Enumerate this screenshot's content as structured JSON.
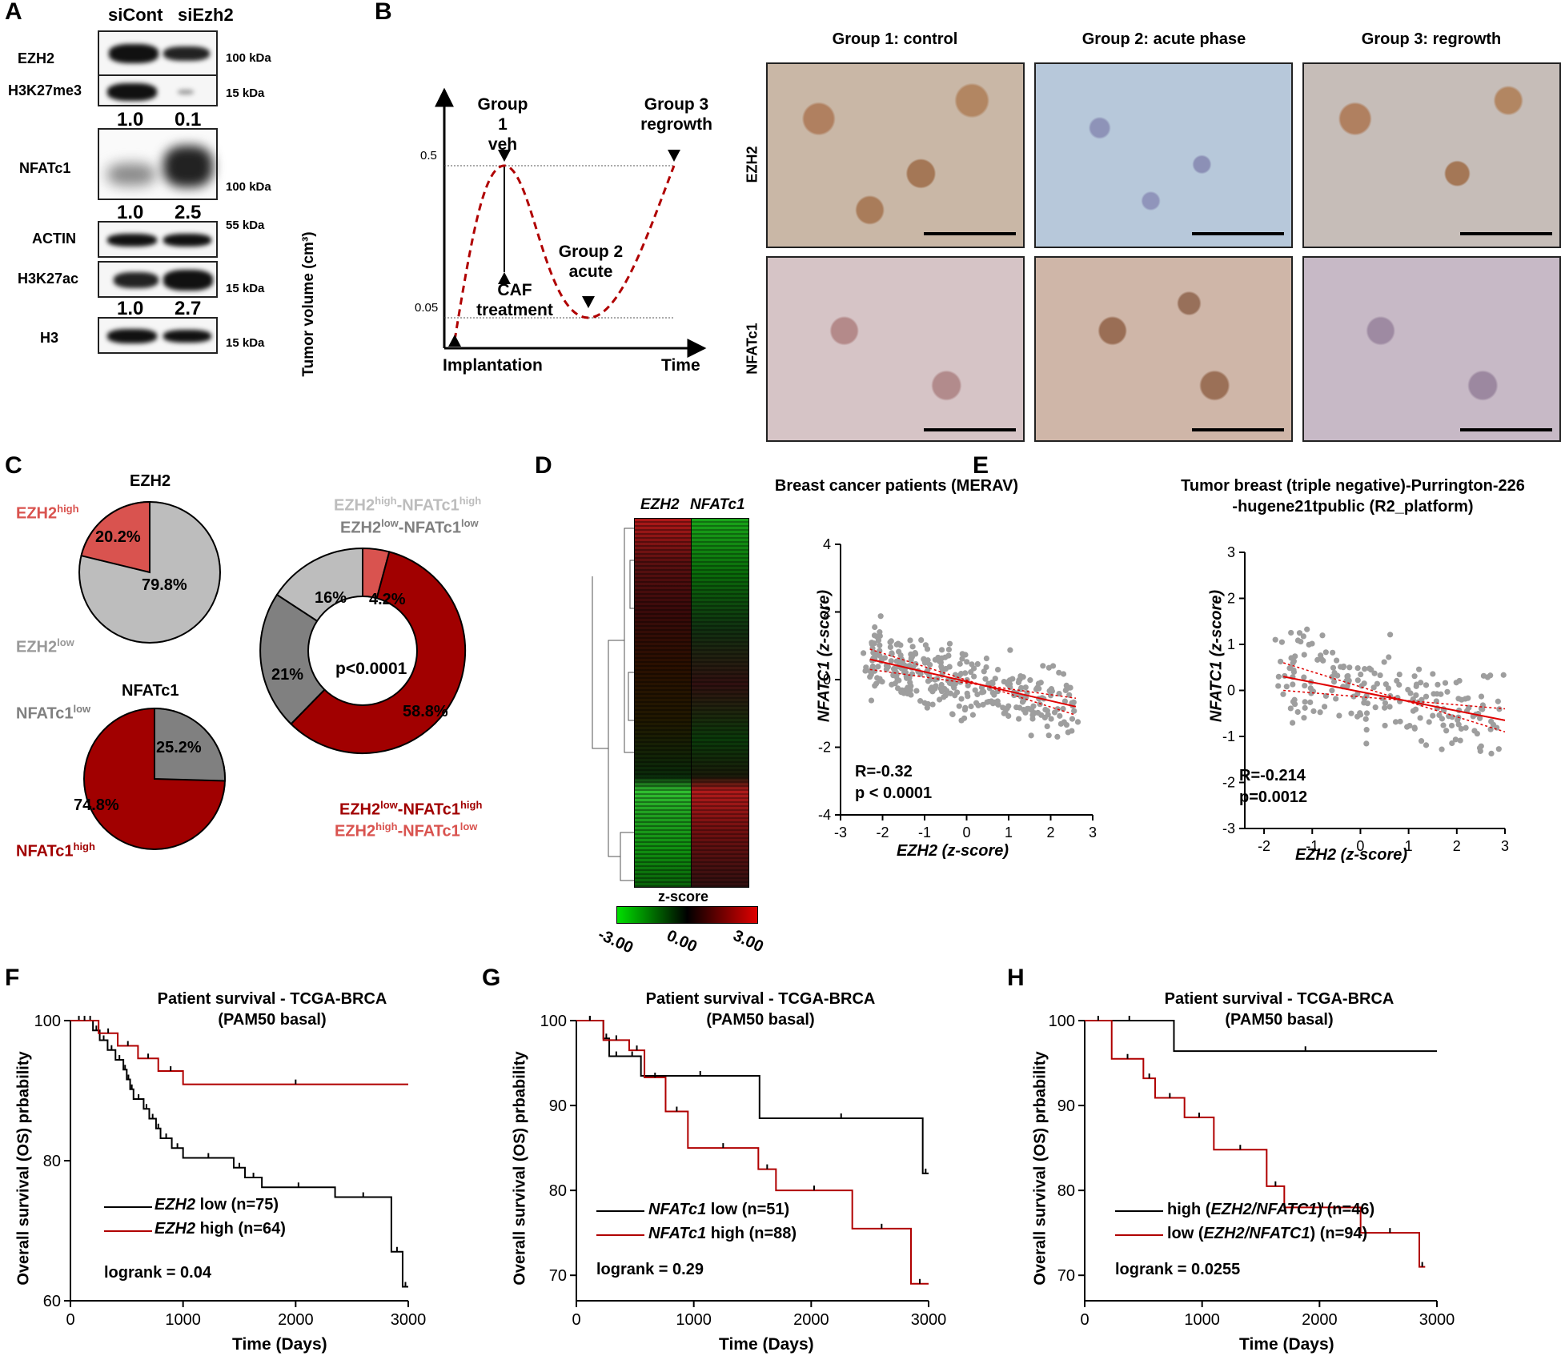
{
  "panels": {
    "A": "A",
    "B": "B",
    "C": "C",
    "D": "D",
    "E": "E",
    "F": "F",
    "G": "G",
    "H": "H"
  },
  "panelA": {
    "lanes": [
      "siCont",
      "siEzh2"
    ],
    "blots": [
      {
        "label": "EZH2",
        "kda": "100 kDa"
      },
      {
        "label": "H3K27me3",
        "kda": "15 kDa"
      },
      {
        "label": "NFATc1",
        "kda": "100 kDa"
      },
      {
        "label": "ACTIN",
        "kda": "55 kDa"
      },
      {
        "label": "H3K27ac",
        "kda": "15 kDa"
      },
      {
        "label": "H3",
        "kda": "15 kDa"
      }
    ],
    "quant_h3k27me3": [
      "1.0",
      "0.1"
    ],
    "quant_nfatc1": [
      "1.0",
      "2.5"
    ],
    "quant_h3k27ac": [
      "1.0",
      "2.7"
    ]
  },
  "panelB": {
    "ylabel": "Tumor volume (cm³)",
    "xlabel": "Time",
    "y_high": "0.5",
    "y_low": "0.05",
    "implantation": "Implantation",
    "caf_1": "CAF",
    "caf_2": "treatment",
    "g1_1": "Group 1",
    "g1_2": "veh",
    "g2_1": "Group 2",
    "g2_2": "acute",
    "g3_1": "Group 3",
    "g3_2": "regrowth",
    "col_titles": [
      "Group 1: control",
      "Group 2: acute phase",
      "Group 3: regrowth"
    ],
    "row_labels": [
      "EZH2",
      "NFATc1"
    ]
  },
  "panelC": {
    "ezh2_title": "EZH2",
    "ezh2_high_pct": "20.2%",
    "ezh2_low_pct": "79.8%",
    "ezh2_high_label": "EZH2",
    "ezh2_high_sup": "high",
    "ezh2_low_label": "EZH2",
    "ezh2_low_sup": "low",
    "nfat_title": "NFATc1",
    "nfat_low_pct": "25.2%",
    "nfat_high_pct": "74.8%",
    "nfat_low_label": "NFATc1",
    "nfat_low_sup": "low",
    "nfat_high_label": "NFATc1",
    "nfat_high_sup": "high",
    "donut_center": "p<0.0001",
    "donut_pcts": [
      "4.2%",
      "58.8%",
      "21%",
      "16%"
    ],
    "leg_hh": {
      "a": "EZH2",
      "b": "high",
      "c": "-NFATc1",
      "d": "high"
    },
    "leg_ll": {
      "a": "EZH2",
      "b": "low",
      "c": "-NFATc1",
      "d": "low"
    },
    "leg_lh": {
      "a": "EZH2",
      "b": "low",
      "c": "-NFATc1",
      "d": "high"
    },
    "leg_hl": {
      "a": "EZH2",
      "b": "high",
      "c": "-NFATc1",
      "d": "low"
    },
    "colors": {
      "dark_red": "#a10000",
      "light_red": "#d9534f",
      "light_gray": "#bdbdbd",
      "dark_gray": "#808080"
    }
  },
  "panelD": {
    "title": "Breast cancer patients (MERAV)",
    "heat_cols": [
      "EZH2",
      "NFATc1"
    ],
    "zscore_label": "z-score",
    "zscore_ticks": [
      "-3.00",
      "0.00",
      "3.00"
    ],
    "ylabel": "NFATC1 (z-score)",
    "xlabel": "EZH2 (z-score)",
    "xticks": [
      "-3",
      "-2",
      "-1",
      "0",
      "1",
      "2",
      "3"
    ],
    "yticks": [
      "4",
      "2",
      "0",
      "-2",
      "-4"
    ],
    "stat_r": "R=-0.32",
    "stat_p": "p < 0.0001"
  },
  "panelE": {
    "title1": "Tumor breast (triple negative)-Purrington-226",
    "title2": "-hugene21tpublic (R2_platform)",
    "ylabel": "NFATC1 (z-score)",
    "xlabel": "EZH2 (z-score)",
    "xticks": [
      "-2",
      "-1",
      "0",
      "1",
      "2",
      "3"
    ],
    "yticks": [
      "3",
      "2",
      "1",
      "0",
      "-1",
      "-2",
      "-3"
    ],
    "stat_r": "R=-0.214",
    "stat_p": "p=0.0012"
  },
  "km_common": {
    "title1": "Patient survival - TCGA-BRCA",
    "title2": "(PAM50 basal)",
    "ylabel": "Overall survival (OS) prbability",
    "xlabel": "Time (Days)",
    "xticks": [
      "0",
      "1000",
      "2000",
      "3000"
    ]
  },
  "chart_data": [
    {
      "type": "scatter",
      "panel": "D",
      "title": "Breast cancer patients (MERAV)",
      "xlabel": "EZH2 (z-score)",
      "ylabel": "NFATC1 (z-score)",
      "xlim": [
        -3,
        3
      ],
      "ylim": [
        -4,
        4
      ],
      "fit": {
        "x": [
          -2.3,
          2.6
        ],
        "y": [
          0.6,
          -0.8
        ]
      },
      "R": -0.32,
      "p": "< 0.0001"
    },
    {
      "type": "scatter",
      "panel": "E",
      "title": "Tumor breast (triple negative)-Purrington-226-hugene21tpublic (R2_platform)",
      "xlabel": "EZH2 (z-score)",
      "ylabel": "NFATC1 (z-score)",
      "xlim": [
        -2.4,
        3
      ],
      "ylim": [
        -3,
        3
      ],
      "fit": {
        "x": [
          -1.6,
          3.0
        ],
        "y": [
          0.3,
          -0.65
        ]
      },
      "R": -0.214,
      "p": "0.0012"
    },
    {
      "type": "line",
      "panel": "F",
      "xlim": [
        0,
        3000
      ],
      "ylim": [
        60,
        100
      ],
      "yticks": [
        "60",
        "80",
        "100"
      ],
      "series": [
        {
          "name": "EZH2 low (n=75)",
          "name_a": "EZH2",
          "name_b": " low (n=75)",
          "color": "#000000",
          "x": [
            0,
            150,
            200,
            260,
            330,
            400,
            470,
            500,
            530,
            560,
            650,
            700,
            760,
            800,
            900,
            1000,
            1450,
            1550,
            1700,
            2350,
            2850,
            2950,
            3000
          ],
          "y": [
            100,
            100,
            98.6,
            97.2,
            95.8,
            94.4,
            93,
            91.6,
            90.2,
            88.8,
            87.4,
            86,
            84.6,
            83.2,
            81.8,
            80.4,
            79,
            77.6,
            76.2,
            74.8,
            67,
            62,
            62
          ]
        },
        {
          "name": "EZH2 high (n=64)",
          "name_a": "EZH2",
          "name_b": " high (n=64)",
          "color": "#b00000",
          "x": [
            0,
            250,
            420,
            600,
            780,
            1000,
            3000
          ],
          "y": [
            100,
            98.2,
            96.4,
            94.6,
            92.8,
            90.9,
            90.9
          ]
        }
      ],
      "logrank": "logrank = 0.04"
    },
    {
      "type": "line",
      "panel": "G",
      "xlim": [
        0,
        3000
      ],
      "ylim": [
        67,
        100
      ],
      "yticks": [
        "70",
        "80",
        "90",
        "100"
      ],
      "series": [
        {
          "name": "NFATc1 low (n=51)",
          "name_a": "NFATc1",
          "name_b": " low (n=51)",
          "color": "#000000",
          "x": [
            0,
            230,
            280,
            400,
            550,
            1560,
            2950,
            3000
          ],
          "y": [
            100,
            97.9,
            95.8,
            95.8,
            93.5,
            88.5,
            82,
            82
          ]
        },
        {
          "name": "NFATc1 high (n=88)",
          "name_a": "NFATc1",
          "name_b": " high (n=88)",
          "color": "#b00000",
          "x": [
            0,
            230,
            450,
            580,
            760,
            950,
            1550,
            1700,
            2350,
            2850,
            3000
          ],
          "y": [
            100,
            97.7,
            96.5,
            93.3,
            89.3,
            85,
            82.5,
            80,
            75.5,
            69,
            69
          ]
        }
      ],
      "logrank": "logrank = 0.29"
    },
    {
      "type": "line",
      "panel": "H",
      "xlim": [
        0,
        3000
      ],
      "ylim": [
        67,
        100
      ],
      "yticks": [
        "70",
        "80",
        "90",
        "100"
      ],
      "series": [
        {
          "name": "high (EZH2/NFATC1) (n=46)",
          "name_a": "high (",
          "name_b": "EZH2/NFATC1",
          "name_c": ") (n=46)",
          "color": "#000000",
          "x": [
            0,
            760,
            3000
          ],
          "y": [
            100,
            96.4,
            96.4
          ]
        },
        {
          "name": "low (EZH2/NFATC1) (n=94)",
          "name_a": "low (",
          "name_b": "EZH2/NFATC1",
          "name_c": ") (n=94)",
          "color": "#b00000",
          "x": [
            0,
            230,
            500,
            600,
            850,
            1100,
            1550,
            1700,
            2350,
            2850,
            2900
          ],
          "y": [
            100,
            95.5,
            93.2,
            90.9,
            88.6,
            84.8,
            80.5,
            78,
            75,
            71,
            71
          ]
        }
      ],
      "logrank": "logrank = 0.0255"
    }
  ]
}
